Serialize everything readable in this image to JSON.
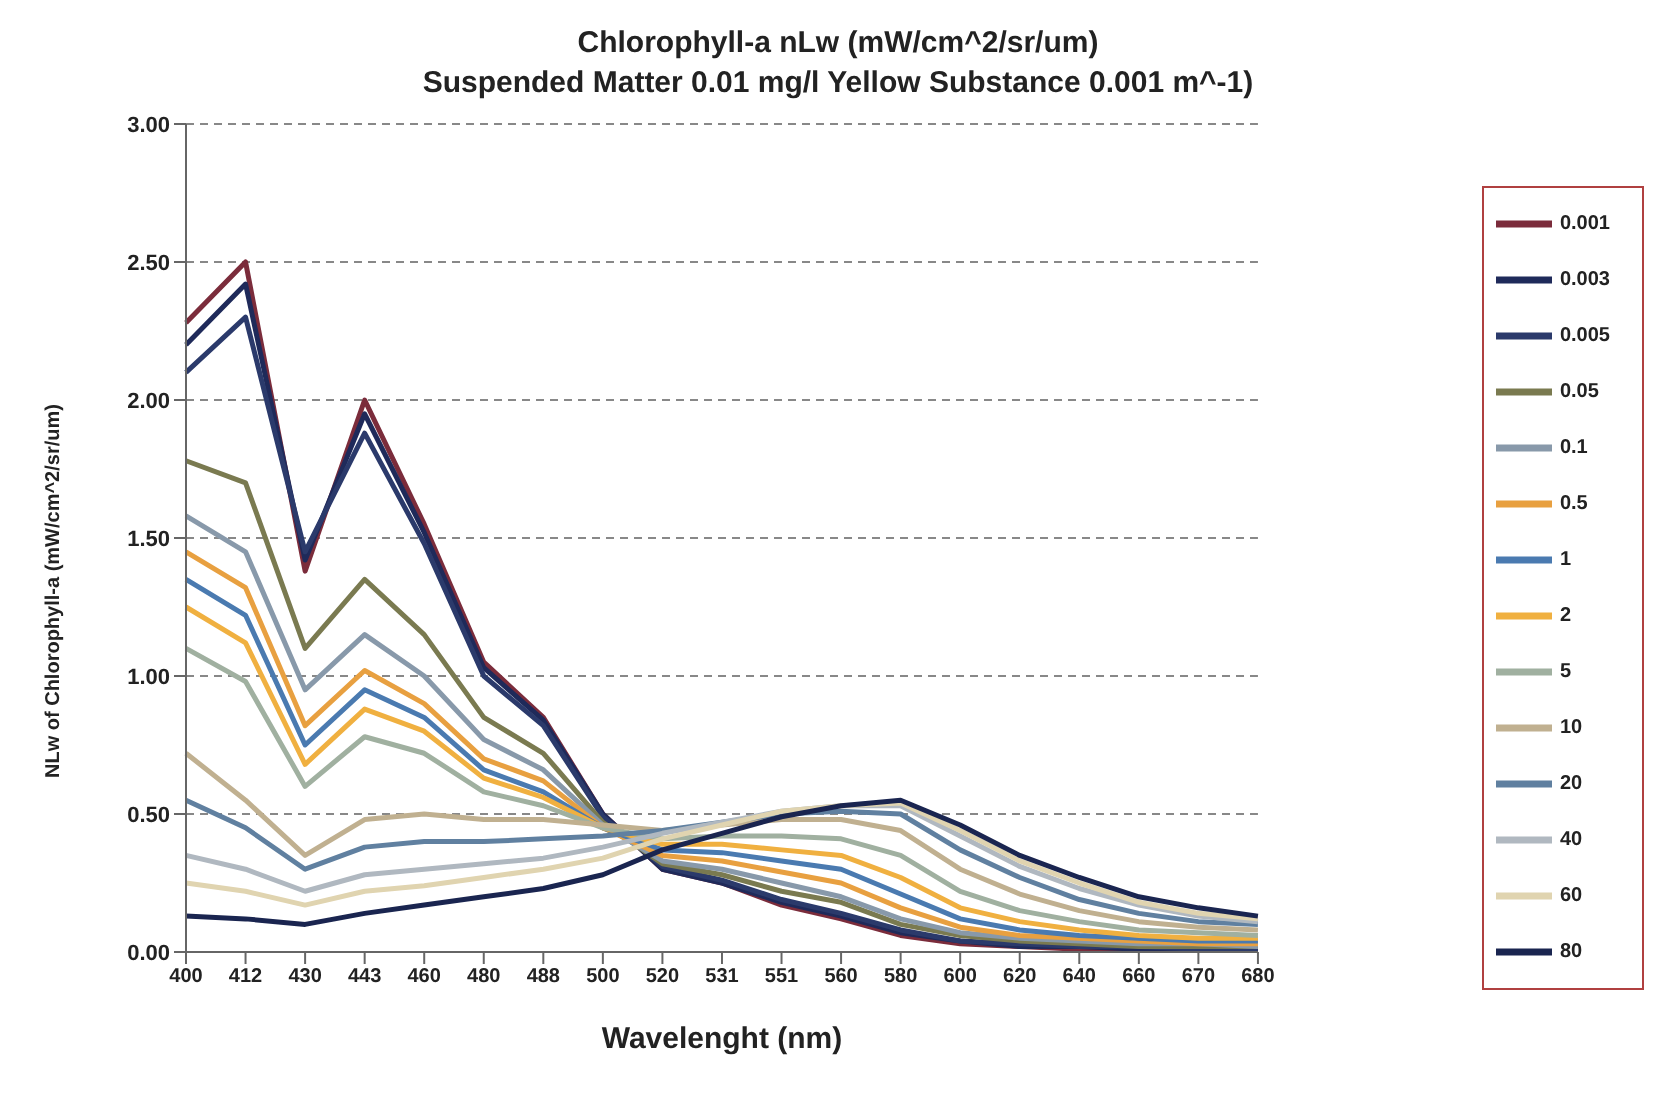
{
  "chart_data": {
    "type": "line",
    "title": "Chlorophyll-a nLw (mW/cm^2/sr/um)",
    "subtitle": "Suspended Matter 0.01 mg/l  Yellow Substance 0.001 m^-1)",
    "xlabel": "Wavelenght (nm)",
    "ylabel": "NLw of Chlorophyll-a (mW/cm^2/sr/um)",
    "categories": [
      "400",
      "412",
      "430",
      "443",
      "460",
      "480",
      "488",
      "500",
      "520",
      "531",
      "551",
      "560",
      "580",
      "600",
      "620",
      "640",
      "660",
      "670",
      "680"
    ],
    "ylim": [
      0,
      3
    ],
    "yticks": [
      {
        "value": 0,
        "label": "0.00"
      },
      {
        "value": 0.5,
        "label": "0.50"
      },
      {
        "value": 1,
        "label": "1.00"
      },
      {
        "value": 1.5,
        "label": "1.50"
      },
      {
        "value": 2,
        "label": "2.00"
      },
      {
        "value": 2.5,
        "label": "2.50"
      },
      {
        "value": 3,
        "label": "3.00"
      }
    ],
    "grid": "y",
    "legend": "right",
    "marker": "none",
    "line_style": "solid",
    "series": [
      {
        "name": "0.001",
        "color": "#7b2c3b",
        "values": [
          2.28,
          2.5,
          1.38,
          2.0,
          1.55,
          1.05,
          0.85,
          0.5,
          0.3,
          0.25,
          0.17,
          0.12,
          0.06,
          0.03,
          0.02,
          0.01,
          0.01,
          0.01,
          0.01
        ]
      },
      {
        "name": "0.003",
        "color": "#1f2a5a",
        "values": [
          2.2,
          2.42,
          1.42,
          1.95,
          1.52,
          1.03,
          0.84,
          0.5,
          0.3,
          0.25,
          0.18,
          0.13,
          0.07,
          0.04,
          0.02,
          0.02,
          0.01,
          0.01,
          0.01
        ]
      },
      {
        "name": "0.005",
        "color": "#2b3a6b",
        "values": [
          2.1,
          2.3,
          1.45,
          1.88,
          1.48,
          1.0,
          0.82,
          0.49,
          0.31,
          0.26,
          0.19,
          0.14,
          0.08,
          0.04,
          0.03,
          0.02,
          0.02,
          0.01,
          0.01
        ]
      },
      {
        "name": "0.05",
        "color": "#7a7a50",
        "values": [
          1.78,
          1.7,
          1.1,
          1.35,
          1.15,
          0.85,
          0.72,
          0.47,
          0.32,
          0.28,
          0.22,
          0.18,
          0.1,
          0.06,
          0.04,
          0.03,
          0.02,
          0.02,
          0.02
        ]
      },
      {
        "name": "0.1",
        "color": "#8899aa",
        "values": [
          1.58,
          1.45,
          0.95,
          1.15,
          1.0,
          0.77,
          0.66,
          0.46,
          0.33,
          0.3,
          0.25,
          0.2,
          0.12,
          0.07,
          0.05,
          0.04,
          0.03,
          0.03,
          0.02
        ]
      },
      {
        "name": "0.5",
        "color": "#e8a040",
        "values": [
          1.45,
          1.32,
          0.82,
          1.02,
          0.9,
          0.7,
          0.62,
          0.45,
          0.35,
          0.33,
          0.29,
          0.25,
          0.16,
          0.09,
          0.06,
          0.05,
          0.04,
          0.03,
          0.03
        ]
      },
      {
        "name": "1",
        "color": "#4a7ab0",
        "values": [
          1.35,
          1.22,
          0.75,
          0.95,
          0.85,
          0.66,
          0.58,
          0.45,
          0.37,
          0.36,
          0.33,
          0.3,
          0.21,
          0.12,
          0.08,
          0.06,
          0.05,
          0.04,
          0.04
        ]
      },
      {
        "name": "2",
        "color": "#f0b040",
        "values": [
          1.25,
          1.12,
          0.68,
          0.88,
          0.8,
          0.63,
          0.56,
          0.45,
          0.39,
          0.39,
          0.37,
          0.35,
          0.27,
          0.16,
          0.11,
          0.08,
          0.06,
          0.05,
          0.05
        ]
      },
      {
        "name": "5",
        "color": "#a0b0a0",
        "values": [
          1.1,
          0.98,
          0.6,
          0.78,
          0.72,
          0.58,
          0.53,
          0.45,
          0.41,
          0.42,
          0.42,
          0.41,
          0.35,
          0.22,
          0.15,
          0.11,
          0.08,
          0.07,
          0.06
        ]
      },
      {
        "name": "10",
        "color": "#c0b090",
        "values": [
          0.72,
          0.55,
          0.35,
          0.48,
          0.5,
          0.48,
          0.48,
          0.46,
          0.44,
          0.46,
          0.48,
          0.48,
          0.44,
          0.3,
          0.21,
          0.15,
          0.11,
          0.09,
          0.08
        ]
      },
      {
        "name": "20",
        "color": "#6080a0",
        "values": [
          0.55,
          0.45,
          0.3,
          0.38,
          0.4,
          0.4,
          0.41,
          0.42,
          0.44,
          0.47,
          0.5,
          0.51,
          0.5,
          0.37,
          0.27,
          0.19,
          0.14,
          0.11,
          0.1
        ]
      },
      {
        "name": "40",
        "color": "#b0b8c0",
        "values": [
          0.35,
          0.3,
          0.22,
          0.28,
          0.3,
          0.32,
          0.34,
          0.38,
          0.43,
          0.47,
          0.51,
          0.53,
          0.53,
          0.42,
          0.31,
          0.23,
          0.17,
          0.13,
          0.11
        ]
      },
      {
        "name": "60",
        "color": "#e0d4b0",
        "values": [
          0.25,
          0.22,
          0.17,
          0.22,
          0.24,
          0.27,
          0.3,
          0.34,
          0.41,
          0.46,
          0.51,
          0.53,
          0.54,
          0.44,
          0.33,
          0.25,
          0.18,
          0.14,
          0.12
        ]
      },
      {
        "name": "80",
        "color": "#1a2550",
        "values": [
          0.13,
          0.12,
          0.1,
          0.14,
          0.17,
          0.2,
          0.23,
          0.28,
          0.37,
          0.43,
          0.49,
          0.53,
          0.55,
          0.46,
          0.35,
          0.27,
          0.2,
          0.16,
          0.13
        ]
      }
    ]
  }
}
